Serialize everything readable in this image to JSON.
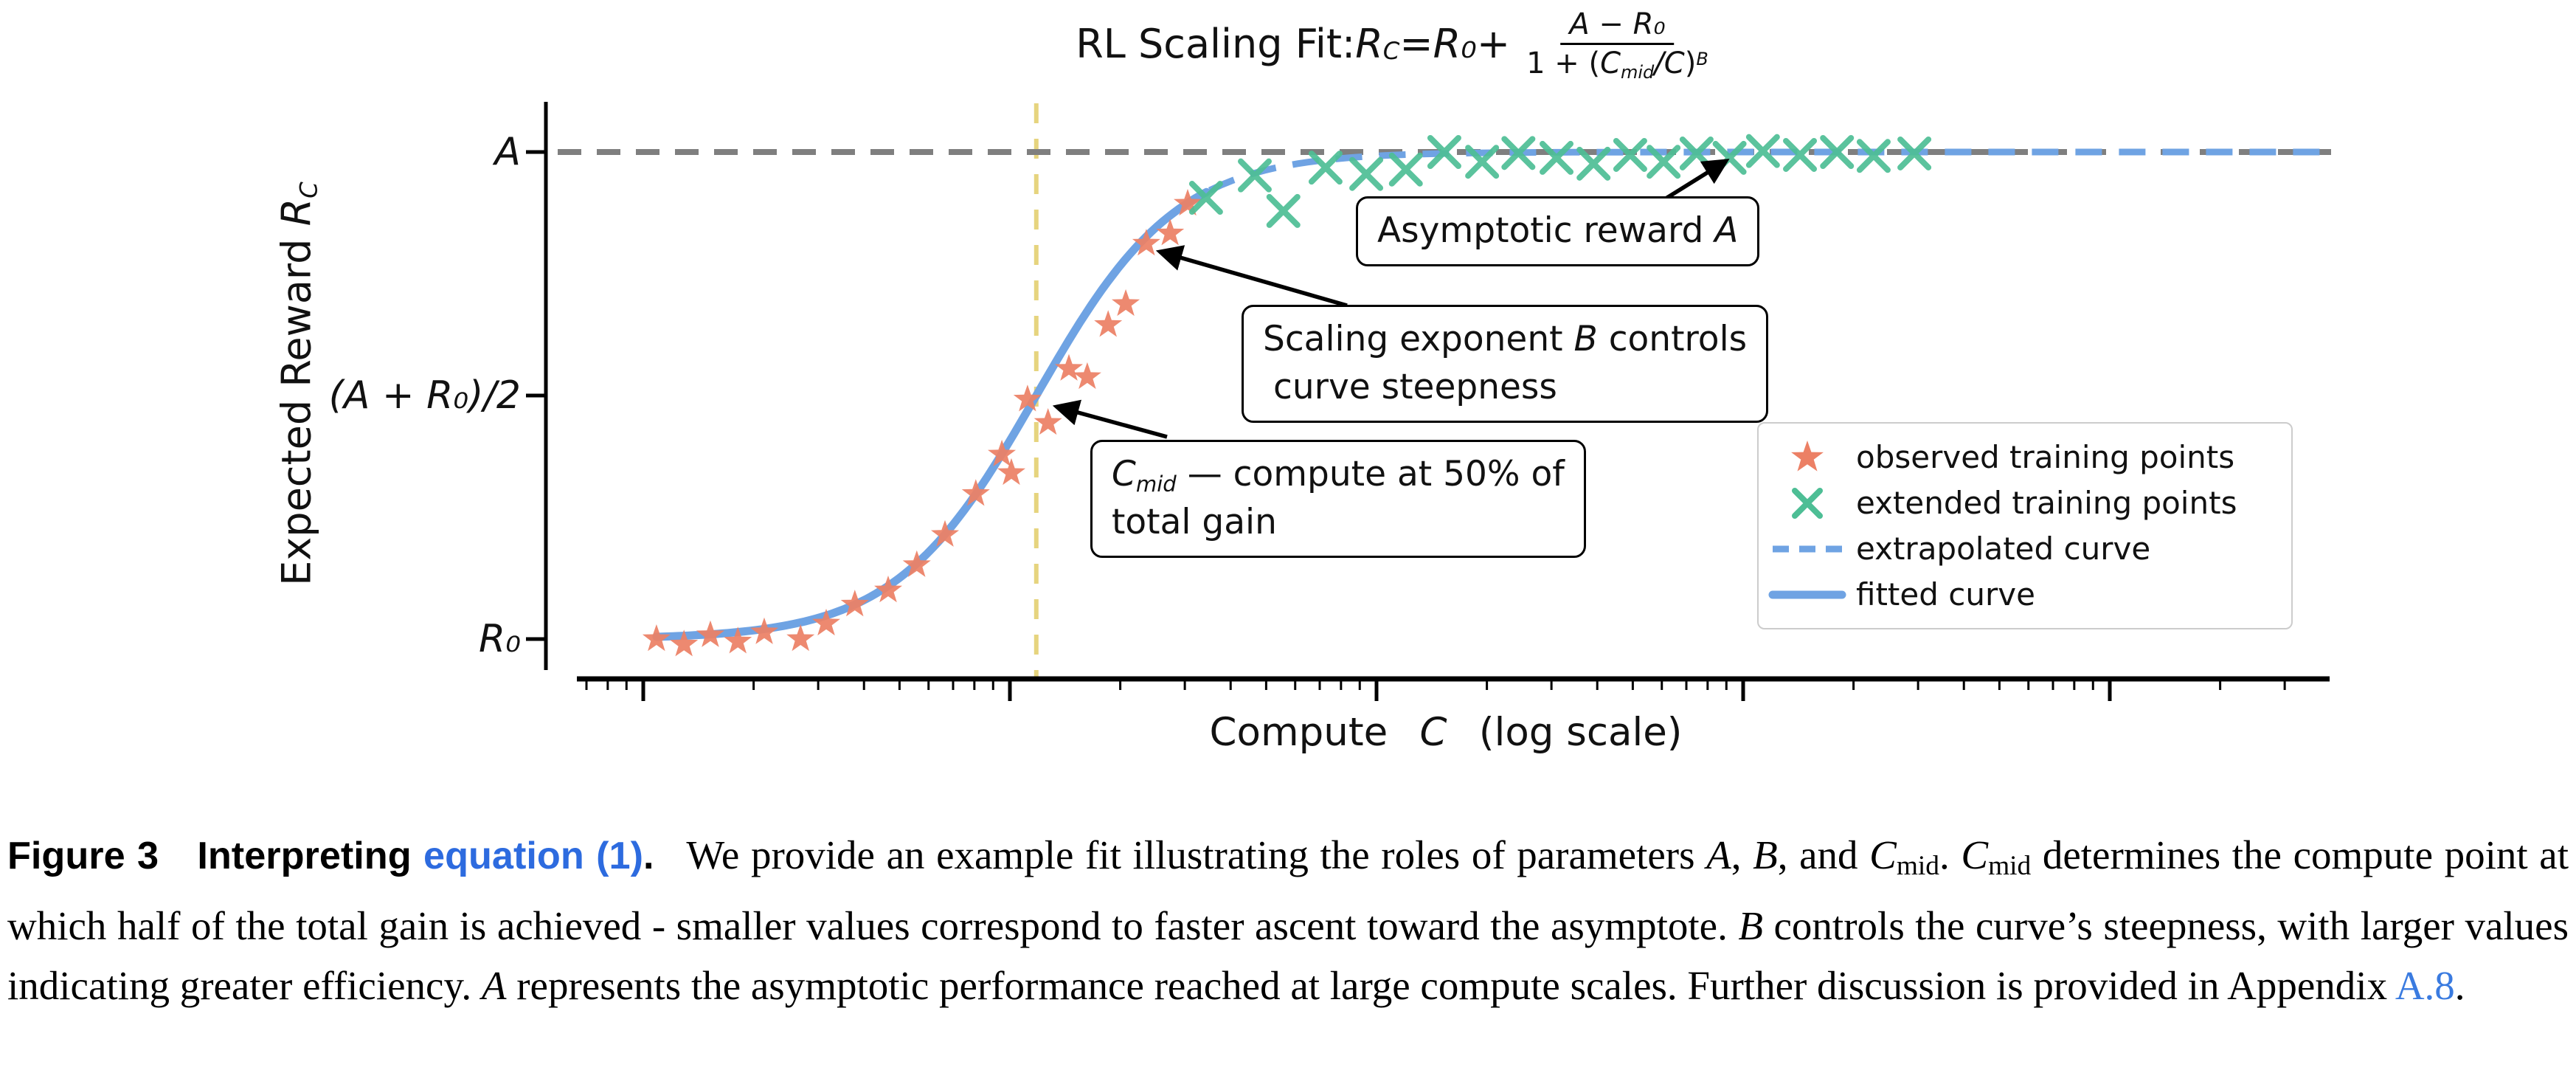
{
  "title": {
    "prefix": "RL Scaling Fit: ",
    "rc": "R",
    "rc_sub": "C",
    "eq": " = ",
    "r0": "R₀",
    "plus": " + ",
    "num_a": "A",
    "num_minus": " − ",
    "num_r0": "R₀",
    "den_pre": "1 + (",
    "den_c": "C",
    "den_sub": "mid",
    "den_slash": "/",
    "den_c2": "C",
    "den_close": ")",
    "den_sup": "B"
  },
  "y_axis": {
    "label_pre": "Expected Reward ",
    "label_math": "R",
    "label_sub": "C",
    "ticks": [
      "A",
      "(A + R₀)/2",
      "R₀"
    ]
  },
  "x_axis": {
    "label_pre": "Compute ",
    "label_math": "C",
    "label_post": " (log scale)"
  },
  "annotations": {
    "asymptote": {
      "text": "Asymptotic reward ",
      "math": "A"
    },
    "scaling": {
      "l1a": "Scaling exponent ",
      "l1b": "B",
      "l1c": " controls",
      "l2": "curve steepness"
    },
    "cmid": {
      "c": "C",
      "sub": "mid",
      "rest": " — compute at 50% of",
      "l2": "total gain"
    }
  },
  "legend": {
    "items": [
      {
        "label": "observed training points",
        "marker": "star"
      },
      {
        "label": "extended training points",
        "marker": "x"
      },
      {
        "label": "extrapolated curve",
        "marker": "dashed-line"
      },
      {
        "label": "fitted curve",
        "marker": "solid-line"
      }
    ]
  },
  "colors": {
    "star": "#EC8065",
    "extended": "#4DBE95",
    "curve": "#6FA3E3",
    "asymptote": "#7F7F7F",
    "cmid_line": "#E6D47E",
    "axis": "#000000",
    "arrow": "#000000",
    "link_bold": "#2D6BDF",
    "link_serif": "#3A7BE0"
  },
  "caption": {
    "segments": [
      {
        "style": "b",
        "text": "Figure 3  Interpreting "
      },
      {
        "style": "bl",
        "text": "equation (1)"
      },
      {
        "style": "b",
        "text": ". "
      },
      {
        "style": "r",
        "text": " We provide an example fit illustrating the roles of parameters "
      },
      {
        "style": "i",
        "text": "A"
      },
      {
        "style": "r",
        "text": ", "
      },
      {
        "style": "i",
        "text": "B"
      },
      {
        "style": "r",
        "text": ", and "
      },
      {
        "style": "i",
        "text": "C"
      },
      {
        "style": "sub",
        "text": "mid"
      },
      {
        "style": "r",
        "text": ". "
      },
      {
        "style": "i",
        "text": "C"
      },
      {
        "style": "sub",
        "text": "mid"
      },
      {
        "style": "r",
        "text": " determines the compute point at which half of the total gain is achieved - smaller values correspond to faster ascent toward the asymptote. "
      },
      {
        "style": "i",
        "text": "B"
      },
      {
        "style": "r",
        "text": " controls the curve’s steepness, with larger values indicating greater efficiency. "
      },
      {
        "style": "i",
        "text": "A"
      },
      {
        "style": "r",
        "text": " represents the asymptotic performance reached at large compute scales. Further discussion is provided in Appendix "
      },
      {
        "style": "link",
        "text": "A.8"
      },
      {
        "style": "r",
        "text": "."
      }
    ]
  },
  "chart_data": {
    "type": "line",
    "title": "RL Scaling Fit: R_C = R_0 + (A - R_0)/(1 + (C_mid/C)^B)",
    "xlabel": "Compute C (log scale)",
    "ylabel": "Expected Reward R_C",
    "x_scale": "log",
    "x_unit": "decades of compute (axis unlabeled, log scale)",
    "y_unit": "normalized reward (R_0 = 0, A = 1)",
    "x_range_decades": [
      -0.18,
      4.6
    ],
    "x_major_tick_decades": [
      0,
      1,
      2,
      3,
      4
    ],
    "yticks": [
      {
        "label": "A",
        "value": 1.0
      },
      {
        "label": "(A + R_0)/2",
        "value": 0.5
      },
      {
        "label": "R_0",
        "value": 0.0
      }
    ],
    "asymptote": {
      "y": 1.0
    },
    "cmid_line": {
      "x_decade": 1.072
    },
    "fit": {
      "formula": "y = 1 / (1 + exp(-slope * (d - d0)))",
      "d0": 1.072,
      "slope": 5.2,
      "solid_range_decades": [
        0.036,
        1.545
      ],
      "dashed_range_decades": [
        1.545,
        4.6
      ]
    },
    "series": [
      {
        "name": "observed training points",
        "marker": "star",
        "points": [
          [
            0.036,
            0.0
          ],
          [
            0.111,
            -0.011
          ],
          [
            0.183,
            0.008
          ],
          [
            0.258,
            -0.005
          ],
          [
            0.33,
            0.014
          ],
          [
            0.429,
            0.0
          ],
          [
            0.499,
            0.032
          ],
          [
            0.577,
            0.071
          ],
          [
            0.668,
            0.1
          ],
          [
            0.746,
            0.152
          ],
          [
            0.823,
            0.214
          ],
          [
            0.907,
            0.298
          ],
          [
            0.978,
            0.379
          ],
          [
            1.004,
            0.341
          ],
          [
            1.048,
            0.492
          ],
          [
            1.104,
            0.444
          ],
          [
            1.161,
            0.555
          ],
          [
            1.211,
            0.538
          ],
          [
            1.268,
            0.645
          ],
          [
            1.316,
            0.688
          ],
          [
            1.372,
            0.812
          ],
          [
            1.437,
            0.833
          ],
          [
            1.485,
            0.894
          ]
        ]
      },
      {
        "name": "extended training points",
        "marker": "x",
        "points": [
          [
            1.535,
            0.906
          ],
          [
            1.668,
            0.952
          ],
          [
            1.746,
            0.879
          ],
          [
            1.861,
            0.968
          ],
          [
            1.972,
            0.955
          ],
          [
            2.08,
            0.964
          ],
          [
            2.185,
            1.0
          ],
          [
            2.288,
            0.98
          ],
          [
            2.387,
            0.998
          ],
          [
            2.491,
            0.988
          ],
          [
            2.592,
            0.976
          ],
          [
            2.692,
            0.994
          ],
          [
            2.783,
            0.98
          ],
          [
            2.873,
            0.997
          ],
          [
            2.963,
            0.988
          ],
          [
            3.054,
            1.002
          ],
          [
            3.155,
            0.994
          ],
          [
            3.256,
            1.0
          ],
          [
            3.356,
            0.992
          ],
          [
            3.467,
            0.997
          ]
        ]
      }
    ],
    "legend_position": "lower right",
    "grid": false
  }
}
